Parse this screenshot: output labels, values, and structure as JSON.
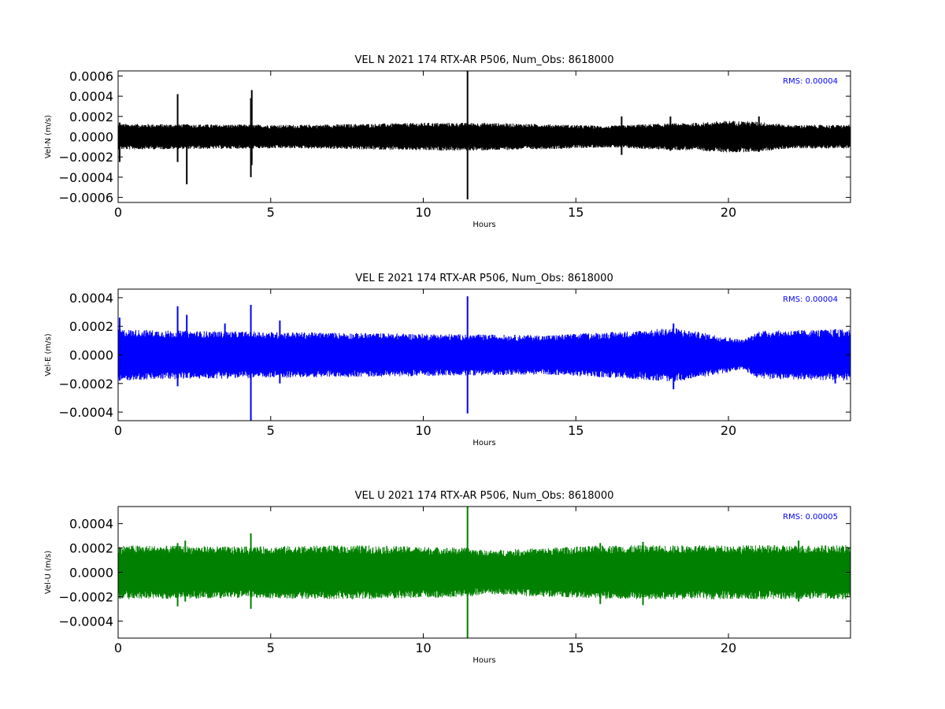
{
  "chart_data": [
    {
      "type": "line",
      "title": "VEL N 2021 174 RTX-AR  P506, Num_Obs: 8618000",
      "xlabel": "Hours",
      "ylabel": "Vel-N (m/s)",
      "xlim": [
        0,
        24
      ],
      "ylim": [
        -0.00065,
        0.00065
      ],
      "xticks": [
        0,
        5,
        10,
        15,
        20
      ],
      "xtick_labels": [
        "0",
        "5",
        "10",
        "15",
        "20"
      ],
      "yticks": [
        -0.0006,
        -0.0004,
        -0.0002,
        0.0,
        0.0002,
        0.0004,
        0.0006
      ],
      "ytick_labels": [
        "−0.0006",
        "−0.0004",
        "−0.0002",
        "0.0000",
        "0.0002",
        "0.0004",
        "0.0006"
      ],
      "rms_label": "RMS:  0.00004",
      "series": [
        {
          "color": "#000000",
          "noise_envelope": [
            [
              0,
              0.00012
            ],
            [
              6,
              0.00011
            ],
            [
              10,
              0.00013
            ],
            [
              12,
              0.00013
            ],
            [
              15,
              0.00011
            ],
            [
              16,
              0.0001
            ],
            [
              17.5,
              0.00012
            ],
            [
              19,
              0.00013
            ],
            [
              20,
              0.00015
            ],
            [
              21,
              0.00014
            ],
            [
              22,
              0.00011
            ],
            [
              24,
              0.00011
            ]
          ],
          "spikes": [
            [
              0.05,
              0.00014,
              -0.00025
            ],
            [
              1.95,
              0.00042,
              -0.00025
            ],
            [
              2.25,
              0.00012,
              -0.00047
            ],
            [
              4.35,
              0.00038,
              -0.0004
            ],
            [
              4.38,
              0.00046,
              -0.00028
            ],
            [
              11.45,
              0.00065,
              -0.00062
            ],
            [
              16.5,
              0.0002,
              -0.00018
            ],
            [
              18.1,
              0.0002,
              -0.00014
            ],
            [
              21.0,
              0.0002,
              -0.00015
            ]
          ]
        }
      ]
    },
    {
      "type": "line",
      "title": "VEL E 2021 174 RTX-AR  P506, Num_Obs: 8618000",
      "xlabel": "Hours",
      "ylabel": "Vel-E (m/s)",
      "xlim": [
        0,
        24
      ],
      "ylim": [
        -0.00046,
        0.00046
      ],
      "xticks": [
        0,
        5,
        10,
        15,
        20
      ],
      "xtick_labels": [
        "0",
        "5",
        "10",
        "15",
        "20"
      ],
      "yticks": [
        -0.0004,
        -0.0002,
        0.0,
        0.0002,
        0.0004
      ],
      "ytick_labels": [
        "−0.0004",
        "−0.0002",
        "0.0000",
        "0.0002",
        "0.0004"
      ],
      "rms_label": "RMS:  0.00004",
      "series": [
        {
          "color": "#0000ff",
          "noise_envelope": [
            [
              0,
              0.00017
            ],
            [
              2,
              0.00016
            ],
            [
              6,
              0.00015
            ],
            [
              10,
              0.00014
            ],
            [
              14,
              0.00013
            ],
            [
              17,
              0.00016
            ],
            [
              18.2,
              0.00018
            ],
            [
              20.5,
              0.0001
            ],
            [
              21,
              0.00016
            ],
            [
              24,
              0.00017
            ]
          ],
          "spikes": [
            [
              0.05,
              0.00026,
              -0.00018
            ],
            [
              1.95,
              0.00034,
              -0.00022
            ],
            [
              2.25,
              0.00028,
              -0.00016
            ],
            [
              3.5,
              0.00022,
              -0.00014
            ],
            [
              4.35,
              0.00035,
              -0.00046
            ],
            [
              5.3,
              0.00024,
              -0.0002
            ],
            [
              11.45,
              0.00041,
              -0.00041
            ],
            [
              18.2,
              0.00022,
              -0.00024
            ],
            [
              23.5,
              0.00018,
              -0.0002
            ]
          ]
        }
      ]
    },
    {
      "type": "line",
      "title": "VEL U 2021 174 RTX-AR  P506, Num_Obs: 8618000",
      "xlabel": "Hours",
      "ylabel": "Vel-U (m/s)",
      "xlim": [
        0,
        24
      ],
      "ylim": [
        -0.00054,
        0.00054
      ],
      "xticks": [
        0,
        5,
        10,
        15,
        20
      ],
      "xtick_labels": [
        "0",
        "5",
        "10",
        "15",
        "20"
      ],
      "yticks": [
        -0.0004,
        -0.0002,
        0.0,
        0.0002,
        0.0004
      ],
      "ytick_labels": [
        "−0.0004",
        "−0.0002",
        "0.0000",
        "0.0002",
        "0.0004"
      ],
      "rms_label": "RMS:  0.00005",
      "series": [
        {
          "color": "#008000",
          "noise_envelope": [
            [
              0,
              0.00021
            ],
            [
              4,
              0.0002
            ],
            [
              8,
              0.00021
            ],
            [
              11.5,
              0.00019
            ],
            [
              12,
              0.00017
            ],
            [
              16,
              0.00021
            ],
            [
              20,
              0.00021
            ],
            [
              24,
              0.00021
            ]
          ],
          "spikes": [
            [
              1.95,
              0.00024,
              -0.00028
            ],
            [
              2.2,
              0.00026,
              -0.00024
            ],
            [
              4.35,
              0.00032,
              -0.0003
            ],
            [
              11.45,
              0.00054,
              -0.00054
            ],
            [
              15.8,
              0.00024,
              -0.00026
            ],
            [
              17.2,
              0.00025,
              -0.00027
            ],
            [
              22.3,
              0.00026,
              -0.00024
            ]
          ]
        }
      ]
    }
  ]
}
